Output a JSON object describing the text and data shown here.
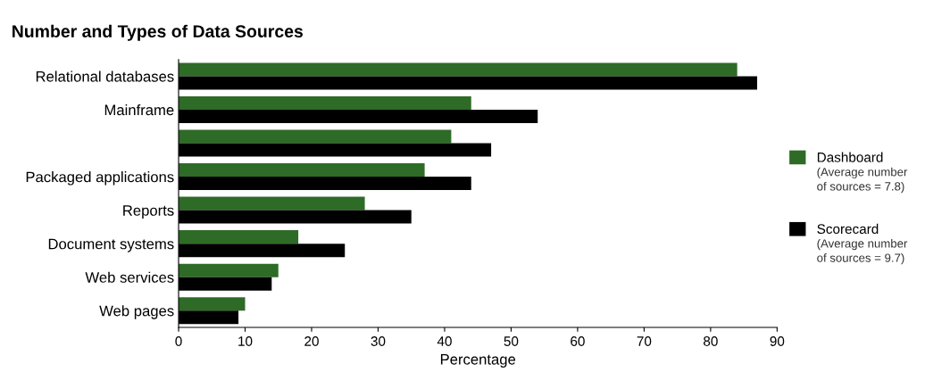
{
  "chart_data": {
    "type": "bar",
    "orientation": "horizontal",
    "title": "Number and Types of Data Sources",
    "xlabel": "Percentage",
    "categories": [
      "Relational databases",
      "Mainframe",
      null,
      "Packaged applications",
      "Reports",
      "Document systems",
      "Web services",
      "Web pages"
    ],
    "series": [
      {
        "name": "Dashboard",
        "color": "#2e6b26",
        "values": [
          84,
          44,
          41,
          37,
          28,
          18,
          15,
          10
        ]
      },
      {
        "name": "Scorecard",
        "color": "#000000",
        "values": [
          87,
          54,
          47,
          44,
          35,
          25,
          14,
          9
        ]
      }
    ],
    "annotations": [
      "(Average number\nof sources = 7.8)",
      "(Average number\nof sources = 9.7)"
    ],
    "xlim": [
      0,
      90
    ],
    "xticks": [
      0,
      10,
      20,
      30,
      40,
      50,
      60,
      70,
      80,
      90
    ],
    "grid": false,
    "legend": "right"
  }
}
